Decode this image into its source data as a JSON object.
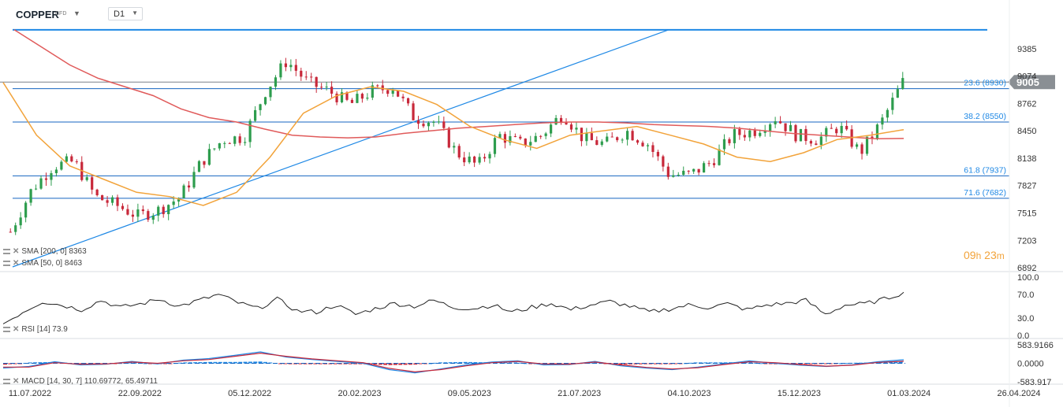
{
  "header": {
    "symbol": "COPPER",
    "symbol_type": "CFD",
    "timeframe": "D1"
  },
  "colors": {
    "up_candle": "#2e9d4e",
    "down_candle": "#c8283a",
    "sma200": "#e05a5a",
    "sma50": "#f2a33a",
    "trendline": "#1e88e5",
    "fib_line": "#1565c0",
    "price_badge": "#8a8f94",
    "rsi_line": "#222222",
    "macd_line": "#1e88e5",
    "macd_signal": "#c8283a"
  },
  "indicators": {
    "sma200_label": "SMA [200, 0] 8363",
    "sma50_label": "SMA [50, 0] 8463",
    "rsi_label": "RSI [14] 73.9",
    "macd_label": "MACD [14, 30, 7] 110.69772, 65.49711"
  },
  "timer": {
    "hours": "09",
    "h_unit": "h",
    "minutes": "23",
    "m_unit": "m"
  },
  "chart_data": {
    "type": "candlestick",
    "title": "COPPER",
    "current_price": "9005",
    "x_ticks": [
      "11.07.2022",
      "22.09.2022",
      "05.12.2022",
      "20.02.2023",
      "09.05.2023",
      "21.07.2023",
      "04.10.2023",
      "15.12.2023",
      "01.03.2024",
      "26.04.2024"
    ],
    "y_ticks": [
      "9385",
      "9074",
      "8762",
      "8450",
      "8138",
      "7827",
      "7515",
      "7203",
      "6892"
    ],
    "ylim": [
      6892,
      9697
    ],
    "fib_levels": [
      {
        "label": "23.6 (8930)",
        "value": 8930
      },
      {
        "label": "38.2 (8550)",
        "value": 8550
      },
      {
        "label": "61.8 (7937)",
        "value": 7937
      },
      {
        "label": "71.6 (7682)",
        "value": 7682
      }
    ],
    "horizontal_lines": [
      9600,
      9005
    ],
    "price_series": [
      {
        "date": "11.07.2022",
        "close": 7300
      },
      {
        "date": "25.07.2022",
        "close": 7780
      },
      {
        "date": "08.08.2022",
        "close": 8050
      },
      {
        "date": "22.08.2022",
        "close": 8100
      },
      {
        "date": "05.09.2022",
        "close": 7700
      },
      {
        "date": "22.09.2022",
        "close": 7600
      },
      {
        "date": "06.10.2022",
        "close": 7480
      },
      {
        "date": "20.10.2022",
        "close": 7550
      },
      {
        "date": "03.11.2022",
        "close": 7700
      },
      {
        "date": "17.11.2022",
        "close": 8100
      },
      {
        "date": "05.12.2022",
        "close": 8350
      },
      {
        "date": "19.12.2022",
        "close": 8380
      },
      {
        "date": "03.01.2023",
        "close": 8900
      },
      {
        "date": "17.01.2023",
        "close": 9250
      },
      {
        "date": "31.01.2023",
        "close": 9000
      },
      {
        "date": "20.02.2023",
        "close": 8900
      },
      {
        "date": "06.03.2023",
        "close": 8750
      },
      {
        "date": "20.03.2023",
        "close": 8900
      },
      {
        "date": "04.04.2023",
        "close": 8950
      },
      {
        "date": "18.04.2023",
        "close": 8600
      },
      {
        "date": "02.05.2023",
        "close": 8550
      },
      {
        "date": "16.05.2023",
        "close": 8200
      },
      {
        "date": "30.05.2023",
        "close": 8050
      },
      {
        "date": "13.06.2023",
        "close": 8400
      },
      {
        "date": "27.06.2023",
        "close": 8300
      },
      {
        "date": "11.07.2023",
        "close": 8400
      },
      {
        "date": "25.07.2023",
        "close": 8650
      },
      {
        "date": "08.08.2023",
        "close": 8350
      },
      {
        "date": "22.08.2023",
        "close": 8300
      },
      {
        "date": "05.09.2023",
        "close": 8450
      },
      {
        "date": "19.09.2023",
        "close": 8300
      },
      {
        "date": "04.10.2023",
        "close": 7950
      },
      {
        "date": "18.10.2023",
        "close": 7950
      },
      {
        "date": "01.11.2023",
        "close": 8100
      },
      {
        "date": "15.11.2023",
        "close": 8400
      },
      {
        "date": "29.11.2023",
        "close": 8450
      },
      {
        "date": "15.12.2023",
        "close": 8600
      },
      {
        "date": "02.01.2024",
        "close": 8400
      },
      {
        "date": "16.01.2024",
        "close": 8350
      },
      {
        "date": "30.01.2024",
        "close": 8500
      },
      {
        "date": "13.02.2024",
        "close": 8200
      },
      {
        "date": "27.02.2024",
        "close": 8550
      },
      {
        "date": "08.03.2024",
        "close": 9005
      }
    ],
    "sma200": [
      9600,
      9400,
      9200,
      9050,
      8950,
      8850,
      8700,
      8600,
      8550,
      8470,
      8400,
      8380,
      8370,
      8380,
      8420,
      8450,
      8480,
      8500,
      8520,
      8540,
      8550,
      8550,
      8540,
      8520,
      8510,
      8500,
      8480,
      8450,
      8420,
      8400,
      8380,
      8360,
      8363
    ],
    "sma50": [
      9000,
      8400,
      8050,
      7900,
      7750,
      7700,
      7600,
      7750,
      8150,
      8650,
      8850,
      8950,
      8900,
      8750,
      8500,
      8350,
      8250,
      8400,
      8450,
      8500,
      8400,
      8300,
      8150,
      8100,
      8200,
      8350,
      8400,
      8463
    ],
    "rsi": {
      "ylim": [
        0,
        100
      ],
      "y_ticks": [
        "100.0",
        "70.0",
        "30.0",
        "0.0"
      ],
      "values": [
        20,
        40,
        58,
        52,
        44,
        60,
        48,
        54,
        62,
        50,
        60,
        70,
        56,
        46,
        62,
        42,
        40,
        52,
        36,
        46,
        55,
        50,
        60,
        48,
        46,
        52,
        40,
        48,
        55,
        44,
        52,
        58,
        50,
        40,
        45,
        52,
        48,
        54,
        44,
        52,
        55,
        60,
        36,
        52,
        54,
        62,
        73.9
      ]
    },
    "macd": {
      "y_ticks": [
        "583.9166",
        "0.0000",
        "-583.917"
      ],
      "ylim": [
        -583.917,
        583.9166
      ],
      "macd_values": [
        -150,
        -100,
        50,
        -50,
        -30,
        60,
        -20,
        100,
        150,
        250,
        360,
        200,
        120,
        60,
        0,
        -200,
        -300,
        -180,
        -50,
        40,
        80,
        -50,
        -40,
        60,
        -80,
        -150,
        -200,
        -120,
        -20,
        80,
        0,
        -60,
        -100,
        -50,
        50,
        110.69772
      ],
      "signal_values": [
        -120,
        -120,
        20,
        -30,
        -20,
        40,
        0,
        80,
        120,
        220,
        320,
        220,
        140,
        80,
        20,
        -160,
        -270,
        -200,
        -80,
        20,
        60,
        -20,
        -30,
        40,
        -50,
        -130,
        -180,
        -140,
        -40,
        50,
        20,
        -40,
        -90,
        -60,
        30,
        65.49711
      ]
    }
  }
}
